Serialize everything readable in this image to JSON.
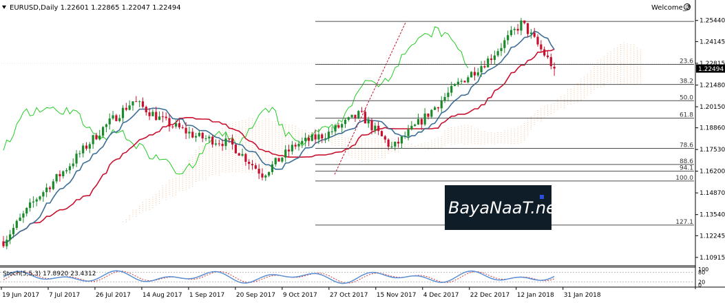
{
  "header": {
    "symbol_line": "EURUSD,Daily  1.22601 1.22865 1.22047 1.22494",
    "account": "Welcome_3"
  },
  "watermark": {
    "text": "BayaNaaT.net"
  },
  "chart_data": [
    {
      "type": "candlestick",
      "symbol": "EURUSD",
      "timeframe": "Daily",
      "ohlc_last": {
        "open": 1.22601,
        "high": 1.22865,
        "low": 1.22047,
        "close": 1.22494
      },
      "current_price": "1.22494",
      "colors": {
        "bull": "#1a8a2a",
        "bear": "#c8102e",
        "kijun": "#c8102e",
        "tenkan": "#3b6e96",
        "chikou": "#22cc22",
        "cloud": "#f3c8a0",
        "fib": "#4a4a4a",
        "trend": "#c8102e"
      },
      "y_ticks": [
        "1.25440",
        "1.24145",
        "1.22815",
        "1.21480",
        "1.20150",
        "1.18860",
        "1.17530",
        "1.16200",
        "1.14870",
        "1.13540",
        "1.12245",
        "1.10915"
      ],
      "ylim": [
        1.1053,
        1.2585
      ],
      "x_ticks": [
        "19 Jun 2017",
        "7 Jul 2017",
        "26 Jul 2017",
        "14 Aug 2017",
        "1 Sep 2017",
        "20 Sep 2017",
        "9 Oct 2017",
        "27 Oct 2017",
        "15 Nov 2017",
        "4 Dec 2017",
        "22 Dec 2017",
        "12 Jan 2018",
        "31 Jan 2018"
      ],
      "fibonacci": {
        "levels": [
          {
            "label": "",
            "price": 1.2538
          },
          {
            "label": "23.6",
            "price": 1.2275
          },
          {
            "label": "38.2",
            "price": 1.2152
          },
          {
            "label": "50.0",
            "price": 1.2052
          },
          {
            "label": "61.8",
            "price": 1.1945
          },
          {
            "label": "78.6",
            "price": 1.176
          },
          {
            "label": "88.6",
            "price": 1.1661
          },
          {
            "label": "94.1",
            "price": 1.162
          },
          {
            "label": "100.0",
            "price": 1.156
          },
          {
            "label": "127.1",
            "price": 1.129
          }
        ]
      },
      "key_prices": [
        1.119,
        1.145,
        1.165,
        1.187,
        1.205,
        1.192,
        1.183,
        1.179,
        1.16,
        1.178,
        1.185,
        1.197,
        1.176,
        1.195,
        1.215,
        1.231,
        1.253,
        1.225
      ]
    },
    {
      "type": "line",
      "indicator": "Stoch(5,5,3)",
      "title": "Stoch(5,5,3) 17.8920 23.4312",
      "values": {
        "main": 17.892,
        "signal": 23.4312
      },
      "y_ticks": [
        "100",
        "80",
        "20",
        "0"
      ],
      "ylim": [
        0,
        100
      ],
      "colors": {
        "main": "#5b8fd6",
        "signal": "#d23a3a"
      }
    }
  ]
}
